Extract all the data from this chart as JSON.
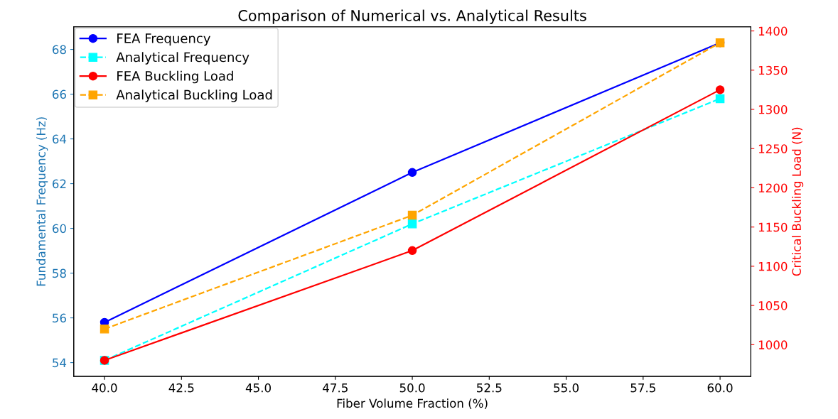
{
  "chart_data": {
    "type": "line",
    "title": "Comparison of Numerical vs. Analytical Results",
    "xlabel": "Fiber Volume Fraction (%)",
    "ylabel": "Fundamental Frequency (Hz)",
    "y2label": "Critical Buckling Load (N)",
    "x": [
      40,
      50,
      60
    ],
    "xlim": [
      39,
      61
    ],
    "xticks": [
      {
        "value": 40,
        "label": "40.0"
      },
      {
        "value": 42.5,
        "label": "42.5"
      },
      {
        "value": 45,
        "label": "45.0"
      },
      {
        "value": 47.5,
        "label": "47.5"
      },
      {
        "value": 50,
        "label": "50.0"
      },
      {
        "value": 52.5,
        "label": "52.5"
      },
      {
        "value": 55,
        "label": "55.0"
      },
      {
        "value": 57.5,
        "label": "57.5"
      },
      {
        "value": 60,
        "label": "60.0"
      }
    ],
    "ylim": [
      53.39,
      69.01
    ],
    "yticks": [
      54,
      56,
      58,
      60,
      62,
      64,
      66,
      68
    ],
    "y2lim": [
      959.75,
      1405.25
    ],
    "y2ticks": [
      1000,
      1050,
      1100,
      1150,
      1200,
      1250,
      1300,
      1350,
      1400
    ],
    "series": [
      {
        "name": "FEA Frequency",
        "color": "#0000ff",
        "values": [
          55.8,
          62.5,
          68.3
        ],
        "marker": "circle",
        "line_style": "solid"
      },
      {
        "name": "Analytical Frequency",
        "color": "#00ffff",
        "values": [
          54.1,
          60.2,
          65.8
        ],
        "marker": "square",
        "line_style": "dashed"
      },
      {
        "name": "FEA Buckling Load",
        "color": "#ff0000",
        "values": [
          980,
          1120,
          1325
        ],
        "marker": "circle",
        "line_style": "solid",
        "axis": "y2"
      },
      {
        "name": "Analytical Buckling Load",
        "color": "#ffa500",
        "values": [
          1020,
          1165,
          1385
        ],
        "marker": "square",
        "line_style": "dashed",
        "axis": "y2"
      }
    ],
    "legend": "top left",
    "grid": false
  }
}
